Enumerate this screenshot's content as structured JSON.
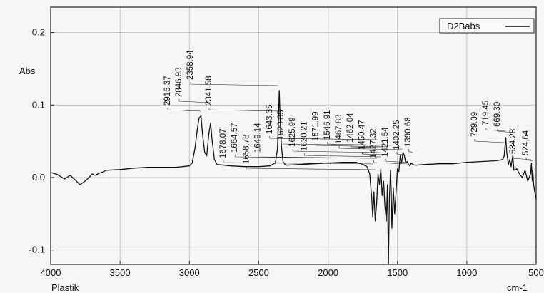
{
  "chart_data": {
    "type": "line",
    "title": "",
    "ylabel": "Abs",
    "xlabel": "cm-1",
    "sample_label": "Plastik",
    "legend": {
      "label": "D2Babs",
      "position": "top-right"
    },
    "xlim": [
      4000,
      500
    ],
    "ylim": [
      -0.12,
      0.235
    ],
    "x_ticks": [
      4000,
      3500,
      3000,
      2500,
      2000,
      1500,
      1000,
      500
    ],
    "y_ticks": [
      -0.1,
      0.0,
      0.1,
      0.2
    ],
    "grid": true,
    "series": [
      {
        "name": "D2Babs",
        "x": [
          4000,
          3950,
          3900,
          3860,
          3820,
          3790,
          3760,
          3730,
          3700,
          3680,
          3650,
          3620,
          3600,
          3500,
          3400,
          3300,
          3200,
          3100,
          3050,
          3000,
          2980,
          2960,
          2940,
          2930,
          2916,
          2905,
          2890,
          2875,
          2860,
          2847,
          2835,
          2820,
          2800,
          2700,
          2600,
          2500,
          2420,
          2380,
          2365,
          2359,
          2352,
          2345,
          2341,
          2335,
          2325,
          2310,
          2300,
          2200,
          2100,
          2000,
          1900,
          1800,
          1760,
          1720,
          1700,
          1685,
          1678,
          1670,
          1660,
          1650,
          1640,
          1630,
          1620,
          1610,
          1600,
          1590,
          1580,
          1572,
          1565,
          1558,
          1550,
          1545,
          1540,
          1530,
          1520,
          1510,
          1500,
          1490,
          1480,
          1470,
          1460,
          1450,
          1440,
          1430,
          1420,
          1410,
          1400,
          1390,
          1370,
          1300,
          1200,
          1100,
          1000,
          900,
          800,
          760,
          740,
          730,
          725,
          719,
          712,
          700,
          690,
          680,
          669,
          660,
          640,
          620,
          600,
          580,
          560,
          540,
          534,
          528,
          524,
          518,
          510,
          500
        ],
        "y": [
          0.007,
          0.004,
          -0.002,
          0.003,
          -0.004,
          -0.01,
          -0.006,
          -0.001,
          0.005,
          0.003,
          0.006,
          0.008,
          0.01,
          0.011,
          0.013,
          0.014,
          0.014,
          0.014,
          0.015,
          0.016,
          0.02,
          0.04,
          0.07,
          0.082,
          0.085,
          0.06,
          0.035,
          0.03,
          0.06,
          0.075,
          0.05,
          0.025,
          0.018,
          0.016,
          0.015,
          0.015,
          0.016,
          0.02,
          0.04,
          0.07,
          0.12,
          0.08,
          0.06,
          0.04,
          0.022,
          0.018,
          0.017,
          0.018,
          0.019,
          0.02,
          0.021,
          0.021,
          0.019,
          0.015,
          0.005,
          -0.03,
          -0.055,
          -0.02,
          -0.06,
          -0.035,
          0.005,
          -0.01,
          0.012,
          -0.025,
          -0.005,
          -0.04,
          -0.06,
          -0.01,
          -0.12,
          -0.03,
          0.01,
          -0.02,
          -0.07,
          -0.015,
          -0.05,
          -0.02,
          0.012,
          0.008,
          0.03,
          0.02,
          0.035,
          0.03,
          0.02,
          0.022,
          0.018,
          0.016,
          0.02,
          0.018,
          0.017,
          0.018,
          0.019,
          0.019,
          0.021,
          0.022,
          0.023,
          0.024,
          0.025,
          0.03,
          0.042,
          0.055,
          0.035,
          0.018,
          0.025,
          0.015,
          0.03,
          0.01,
          0.012,
          0.005,
          0.0,
          0.01,
          -0.005,
          0.005,
          0.02,
          -0.005,
          0.01,
          -0.01,
          -0.02,
          -0.03
        ]
      }
    ],
    "peak_labels": [
      "2916.37",
      "2846.93",
      "2358.94",
      "2341.58",
      "1678.07",
      "1664.57",
      "1658.78",
      "1649.14",
      "1643.35",
      "1629.85",
      "1625.99",
      "1620.21",
      "1571.99",
      "1546.91",
      "1467.83",
      "1462.04",
      "1450.47",
      "1427.32",
      "1421.54",
      "1402.25",
      "1390.68",
      "729.09",
      "719.45",
      "669.30",
      "534.28",
      "524.64"
    ],
    "peak_x": [
      2916.37,
      2846.93,
      2358.94,
      2341.58,
      1678.07,
      1664.57,
      1658.78,
      1649.14,
      1643.35,
      1629.85,
      1625.99,
      1620.21,
      1571.99,
      1546.91,
      1467.83,
      1462.04,
      1450.47,
      1427.32,
      1421.54,
      1402.25,
      1390.68,
      729.09,
      719.45,
      669.3,
      534.28,
      524.64
    ]
  }
}
